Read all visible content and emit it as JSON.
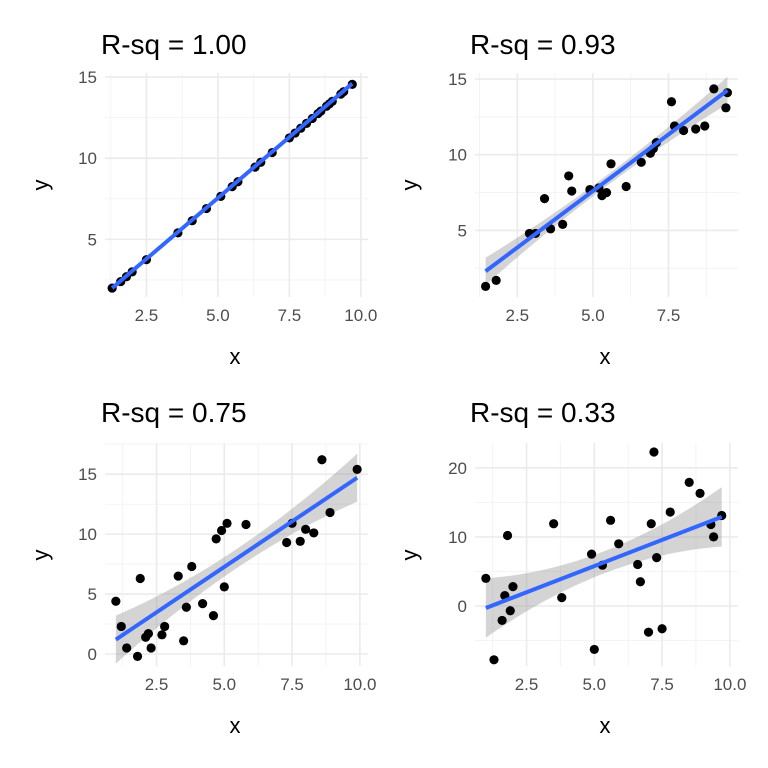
{
  "figure": {
    "panels": [
      {
        "title": "R-sq = 1.00",
        "xlabel": "x",
        "ylabel": "y"
      },
      {
        "title": "R-sq = 0.93",
        "xlabel": "x",
        "ylabel": "y"
      },
      {
        "title": "R-sq = 0.75",
        "xlabel": "x",
        "ylabel": "y"
      },
      {
        "title": "R-sq = 0.33",
        "xlabel": "x",
        "ylabel": "y"
      }
    ]
  },
  "chart_data": [
    {
      "type": "scatter",
      "title": "R-sq = 1.00",
      "xlabel": "x",
      "ylabel": "y",
      "xlim": [
        1.05,
        10.25
      ],
      "ylim": [
        1.45,
        15.25
      ],
      "xticks": [
        2.5,
        5.0,
        7.5,
        10.0
      ],
      "xtick_labels": [
        "2.5",
        "5.0",
        "7.5",
        "10.0"
      ],
      "yticks": [
        5,
        10,
        15
      ],
      "ytick_labels": [
        "5",
        "10",
        "15"
      ],
      "grid": true,
      "fit": {
        "x_range": [
          1.3,
          9.7
        ],
        "y_range": [
          2.0,
          14.6
        ],
        "ci_band": null
      },
      "points": {
        "x": [
          1.3,
          1.6,
          1.8,
          2.0,
          2.5,
          3.6,
          4.1,
          4.6,
          5.1,
          5.5,
          5.7,
          6.3,
          6.5,
          6.9,
          7.5,
          7.7,
          7.9,
          8.1,
          8.3,
          8.5,
          8.6,
          8.8,
          8.9,
          9.0,
          9.3,
          9.4,
          9.7
        ],
        "y": [
          2.0,
          2.4,
          2.7,
          3.0,
          3.75,
          5.4,
          6.15,
          6.9,
          7.65,
          8.25,
          8.55,
          9.45,
          9.75,
          10.35,
          11.25,
          11.55,
          11.85,
          12.15,
          12.45,
          12.75,
          12.9,
          13.2,
          13.35,
          13.5,
          13.95,
          14.1,
          14.55
        ]
      }
    },
    {
      "type": "scatter",
      "title": "R-sq = 0.93",
      "xlabel": "x",
      "ylabel": "y",
      "xlim": [
        1.1,
        9.8
      ],
      "ylim": [
        0.6,
        15.4
      ],
      "xticks": [
        2.5,
        5.0,
        7.5
      ],
      "xtick_labels": [
        "2.5",
        "5.0",
        "7.5"
      ],
      "yticks": [
        5,
        10,
        15
      ],
      "ytick_labels": [
        "5",
        "10",
        "15"
      ],
      "grid": true,
      "fit": {
        "x_range": [
          1.45,
          9.45
        ],
        "y_range": [
          2.3,
          14.25
        ],
        "ci_band": {
          "half_width_at_ends": 0.9,
          "half_width_at_center": 0.35
        }
      },
      "points": {
        "x": [
          1.45,
          1.8,
          2.9,
          3.1,
          3.4,
          3.6,
          4.0,
          4.2,
          4.3,
          4.9,
          5.2,
          5.3,
          5.45,
          5.6,
          6.1,
          6.6,
          6.9,
          7.0,
          7.1,
          7.6,
          7.7,
          8.0,
          8.4,
          8.7,
          9.0,
          9.4,
          9.45
        ],
        "y": [
          1.3,
          1.7,
          4.8,
          4.8,
          7.1,
          5.1,
          5.4,
          8.6,
          7.6,
          7.7,
          7.8,
          7.3,
          7.5,
          9.4,
          7.9,
          9.5,
          10.1,
          10.4,
          10.8,
          13.5,
          11.9,
          11.6,
          11.7,
          11.9,
          14.35,
          13.1,
          14.1
        ]
      }
    },
    {
      "type": "scatter",
      "title": "R-sq = 0.75",
      "xlabel": "x",
      "ylabel": "y",
      "xlim": [
        0.6,
        10.3
      ],
      "ylim": [
        -1.0,
        17.6
      ],
      "xticks": [
        2.5,
        5.0,
        7.5,
        10.0
      ],
      "xtick_labels": [
        "2.5",
        "5.0",
        "7.5",
        "10.0"
      ],
      "yticks": [
        0,
        5,
        10,
        15
      ],
      "ytick_labels": [
        "0",
        "5",
        "10",
        "15"
      ],
      "grid": true,
      "fit": {
        "x_range": [
          1.0,
          9.9
        ],
        "y_range": [
          1.2,
          14.7
        ],
        "ci_band": {
          "half_width_at_ends": 2.0,
          "half_width_at_center": 0.8
        }
      },
      "points": {
        "x": [
          1.0,
          1.2,
          1.4,
          1.8,
          1.9,
          2.1,
          2.2,
          2.3,
          2.7,
          2.8,
          3.3,
          3.5,
          3.6,
          3.8,
          4.2,
          4.6,
          4.7,
          4.9,
          5.0,
          5.1,
          5.8,
          7.3,
          7.5,
          7.8,
          8.0,
          8.3,
          8.6,
          8.9,
          9.9
        ],
        "y": [
          4.4,
          2.3,
          0.5,
          -0.2,
          6.3,
          1.4,
          1.7,
          0.5,
          1.6,
          2.3,
          6.5,
          1.1,
          3.9,
          7.3,
          4.2,
          3.2,
          9.6,
          10.3,
          5.6,
          10.9,
          10.8,
          9.3,
          10.9,
          9.4,
          10.4,
          10.1,
          16.2,
          11.8,
          15.4
        ]
      }
    },
    {
      "type": "scatter",
      "title": "R-sq = 0.33",
      "xlabel": "x",
      "ylabel": "y",
      "xlim": [
        0.6,
        10.3
      ],
      "ylim": [
        -8.7,
        23.6
      ],
      "xticks": [
        2.5,
        5.0,
        7.5,
        10.0
      ],
      "xtick_labels": [
        "2.5",
        "5.0",
        "7.5",
        "10.0"
      ],
      "yticks": [
        0,
        10,
        20
      ],
      "ytick_labels": [
        "0",
        "10",
        "20"
      ],
      "grid": true,
      "fit": {
        "x_range": [
          1.0,
          9.7
        ],
        "y_range": [
          -0.3,
          12.9
        ],
        "ci_band": {
          "half_width_at_ends": 4.3,
          "half_width_at_center": 1.6
        }
      },
      "points": {
        "x": [
          1.0,
          1.3,
          1.6,
          1.7,
          1.8,
          1.9,
          2.0,
          3.5,
          3.8,
          4.9,
          5.0,
          5.3,
          5.6,
          5.9,
          6.6,
          6.7,
          7.0,
          7.1,
          7.2,
          7.3,
          7.5,
          7.8,
          8.5,
          8.9,
          9.3,
          9.4,
          9.7
        ],
        "y": [
          4.0,
          -7.8,
          -2.1,
          1.5,
          10.2,
          -0.7,
          2.8,
          11.9,
          1.2,
          7.5,
          -6.3,
          5.9,
          12.4,
          9.0,
          6.0,
          3.5,
          -3.8,
          11.9,
          22.3,
          7.0,
          -3.3,
          13.6,
          17.9,
          16.3,
          11.8,
          10.0,
          13.1
        ]
      }
    }
  ]
}
